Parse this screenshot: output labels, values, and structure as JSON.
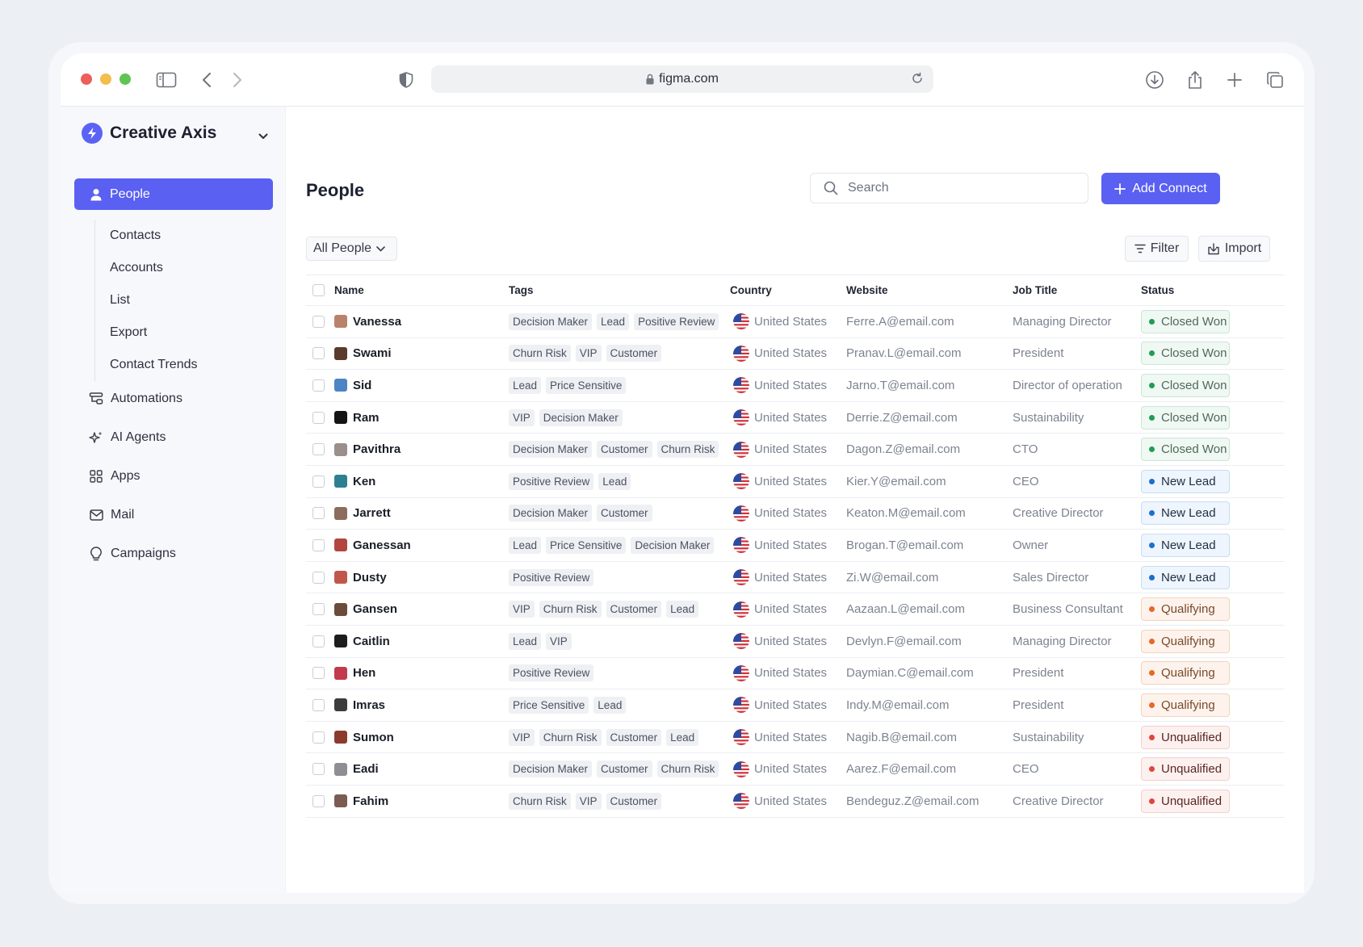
{
  "browser": {
    "url": "figma.com"
  },
  "sidebar": {
    "workspace": "Creative Axis",
    "active_item": "People",
    "subitems": [
      "Contacts",
      "Accounts",
      "List",
      "Export",
      "Contact Trends"
    ],
    "items": [
      {
        "label": "Automations",
        "icon": "automations-icon"
      },
      {
        "label": "AI Agents",
        "icon": "sparkle-icon"
      },
      {
        "label": "Apps",
        "icon": "grid-icon"
      },
      {
        "label": "Mail",
        "icon": "mail-icon"
      },
      {
        "label": "Campaigns",
        "icon": "bulb-icon"
      }
    ]
  },
  "header": {
    "title": "People",
    "search_placeholder": "Search",
    "add_button": "Add Connect"
  },
  "toolbar": {
    "view_select": "All People",
    "filter_label": "Filter",
    "import_label": "Import"
  },
  "table": {
    "columns": [
      "Name",
      "Tags",
      "Country",
      "Website",
      "Job Title",
      "Status"
    ],
    "rows": [
      {
        "name": "Vanessa",
        "tags": [
          "Decision Maker",
          "Lead",
          "Positive Review"
        ],
        "country": "United States",
        "website": "Ferre.A@email.com",
        "job": "Managing Director",
        "status": "Closed Won",
        "status_kind": "won",
        "avatar_color": "#b9826a"
      },
      {
        "name": "Swami",
        "tags": [
          "Churn Risk",
          "VIP",
          "Customer"
        ],
        "country": "United States",
        "website": "Pranav.L@email.com",
        "job": "President",
        "status": "Closed Won",
        "status_kind": "won",
        "avatar_color": "#5a3a2c"
      },
      {
        "name": "Sid",
        "tags": [
          "Lead",
          "Price Sensitive"
        ],
        "country": "United States",
        "website": "Jarno.T@email.com",
        "job": "Director of operation",
        "status": "Closed Won",
        "status_kind": "won",
        "avatar_color": "#4d84c4"
      },
      {
        "name": "Ram",
        "tags": [
          "VIP",
          "Decision Maker"
        ],
        "country": "United States",
        "website": "Derrie.Z@email.com",
        "job": "Sustainability",
        "status": "Closed Won",
        "status_kind": "won",
        "avatar_color": "#141414"
      },
      {
        "name": "Pavithra",
        "tags": [
          "Decision Maker",
          "Customer",
          "Churn Risk"
        ],
        "country": "United States",
        "website": "Dagon.Z@email.com",
        "job": "CTO",
        "status": "Closed Won",
        "status_kind": "won",
        "avatar_color": "#9a8f8a"
      },
      {
        "name": "Ken",
        "tags": [
          "Positive Review",
          "Lead"
        ],
        "country": "United States",
        "website": "Kier.Y@email.com",
        "job": "CEO",
        "status": "New Lead",
        "status_kind": "new",
        "avatar_color": "#2f7f93"
      },
      {
        "name": "Jarrett",
        "tags": [
          "Decision Maker",
          "Customer"
        ],
        "country": "United States",
        "website": "Keaton.M@email.com",
        "job": "Creative Director",
        "status": "New Lead",
        "status_kind": "new",
        "avatar_color": "#8c6c5e"
      },
      {
        "name": "Ganessan",
        "tags": [
          "Lead",
          "Price Sensitive",
          "Decision Maker"
        ],
        "country": "United States",
        "website": "Brogan.T@email.com",
        "job": "Owner",
        "status": "New Lead",
        "status_kind": "new",
        "avatar_color": "#b2463f"
      },
      {
        "name": "Dusty",
        "tags": [
          "Positive Review"
        ],
        "country": "United States",
        "website": "Zi.W@email.com",
        "job": "Sales Director",
        "status": "New Lead",
        "status_kind": "new",
        "avatar_color": "#c0574a"
      },
      {
        "name": "Gansen",
        "tags": [
          "VIP",
          "Churn Risk",
          "Customer",
          "Lead"
        ],
        "country": "United States",
        "website": "Aazaan.L@email.com",
        "job": "Business Consultant",
        "status": "Qualifying",
        "status_kind": "qual",
        "avatar_color": "#6b4b3c"
      },
      {
        "name": "Caitlin",
        "tags": [
          "Lead",
          "VIP"
        ],
        "country": "United States",
        "website": "Devlyn.F@email.com",
        "job": "Managing Director",
        "status": "Qualifying",
        "status_kind": "qual",
        "avatar_color": "#1d1d1f"
      },
      {
        "name": "Hen",
        "tags": [
          "Positive Review"
        ],
        "country": "United States",
        "website": "Daymian.C@email.com",
        "job": "President",
        "status": "Qualifying",
        "status_kind": "qual",
        "avatar_color": "#c13a4e"
      },
      {
        "name": "Imras",
        "tags": [
          "Price Sensitive",
          "Lead"
        ],
        "country": "United States",
        "website": "Indy.M@email.com",
        "job": "President",
        "status": "Qualifying",
        "status_kind": "qual",
        "avatar_color": "#3c3c3c"
      },
      {
        "name": "Sumon",
        "tags": [
          "VIP",
          "Churn Risk",
          "Customer",
          "Lead"
        ],
        "country": "United States",
        "website": "Nagib.B@email.com",
        "job": "Sustainability",
        "status": "Unqualified",
        "status_kind": "unq",
        "avatar_color": "#8a3b2c"
      },
      {
        "name": "Eadi",
        "tags": [
          "Decision Maker",
          "Customer",
          "Churn Risk"
        ],
        "country": "United States",
        "website": "Aarez.F@email.com",
        "job": "CEO",
        "status": "Unqualified",
        "status_kind": "unq",
        "avatar_color": "#8d8f94"
      },
      {
        "name": "Fahim",
        "tags": [
          "Churn Risk",
          "VIP",
          "Customer"
        ],
        "country": "United States",
        "website": "Bendeguz.Z@email.com",
        "job": "Creative Director",
        "status": "Unqualified",
        "status_kind": "unq",
        "avatar_color": "#7a5c52"
      }
    ]
  },
  "colors": {
    "accent": "#5a60f2",
    "won": "#1f9d55",
    "new_lead": "#1a6fd0",
    "qualifying": "#e7672a",
    "unqualified": "#e0463a"
  }
}
